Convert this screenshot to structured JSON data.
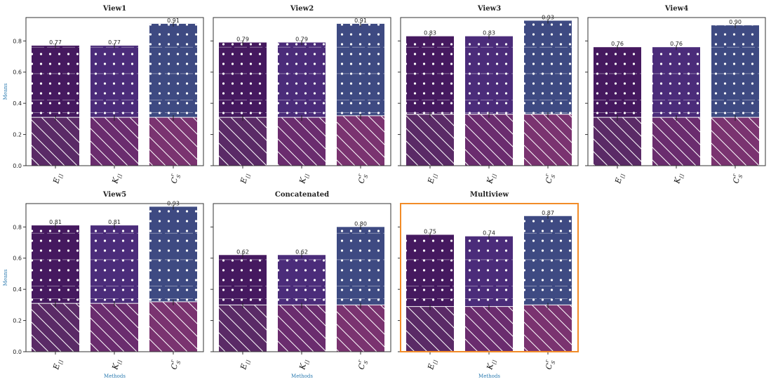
{
  "chart_data": {
    "type": "bar",
    "layout": "stacked-overlay small multiples",
    "ylabel": "Means",
    "xlabel": "Methods",
    "ylim": [
      0,
      0.95
    ],
    "yticks": [
      0.0,
      0.2,
      0.4,
      0.6,
      0.8
    ],
    "ytick_labels": [
      "0.0",
      "0.2",
      "0.4",
      "0.6",
      "0.8"
    ],
    "categories": [
      {
        "main": "E",
        "sub": "[]",
        "sup": ""
      },
      {
        "main": "K",
        "sub": "[]",
        "sup": ""
      },
      {
        "main": "C",
        "sub": "S",
        "sup": "r"
      }
    ],
    "colors": {
      "outer": [
        "#45195f",
        "#4b2c7a",
        "#3e4a82"
      ],
      "inner": [
        "#5a2a66",
        "#6a2c6e",
        "#7a3370"
      ],
      "highlight": "#f28c28"
    },
    "panels": [
      {
        "title": "View1",
        "outer": [
          0.77,
          0.77,
          0.91
        ],
        "outer_labels": [
          "0.77",
          "0.77",
          "0.91"
        ],
        "inner": [
          0.31,
          0.31,
          0.31
        ],
        "highlight": false
      },
      {
        "title": "View2",
        "outer": [
          0.79,
          0.79,
          0.91
        ],
        "outer_labels": [
          "0.79",
          "0.79",
          "0.91"
        ],
        "inner": [
          0.31,
          0.31,
          0.32
        ],
        "highlight": false
      },
      {
        "title": "View3",
        "outer": [
          0.83,
          0.83,
          0.93
        ],
        "outer_labels": [
          "0.83",
          "0.83",
          "0.93"
        ],
        "inner": [
          0.33,
          0.33,
          0.33
        ],
        "highlight": false
      },
      {
        "title": "View4",
        "outer": [
          0.76,
          0.76,
          0.9
        ],
        "outer_labels": [
          "0.76",
          "0.76",
          "0.90"
        ],
        "inner": [
          0.31,
          0.31,
          0.31
        ],
        "highlight": false
      },
      {
        "title": "View5",
        "outer": [
          0.81,
          0.81,
          0.93
        ],
        "outer_labels": [
          "0.81",
          "0.81",
          "0.93"
        ],
        "inner": [
          0.31,
          0.31,
          0.32
        ],
        "highlight": false
      },
      {
        "title": "Concatenated",
        "outer": [
          0.62,
          0.62,
          0.8
        ],
        "outer_labels": [
          "0.62",
          "0.62",
          "0.80"
        ],
        "inner": [
          0.3,
          0.3,
          0.3
        ],
        "highlight": false
      },
      {
        "title": "Multiview",
        "outer": [
          0.75,
          0.74,
          0.87
        ],
        "outer_labels": [
          "0.75",
          "0.74",
          "0.87"
        ],
        "inner": [
          0.29,
          0.29,
          0.3
        ],
        "highlight": true
      }
    ]
  }
}
